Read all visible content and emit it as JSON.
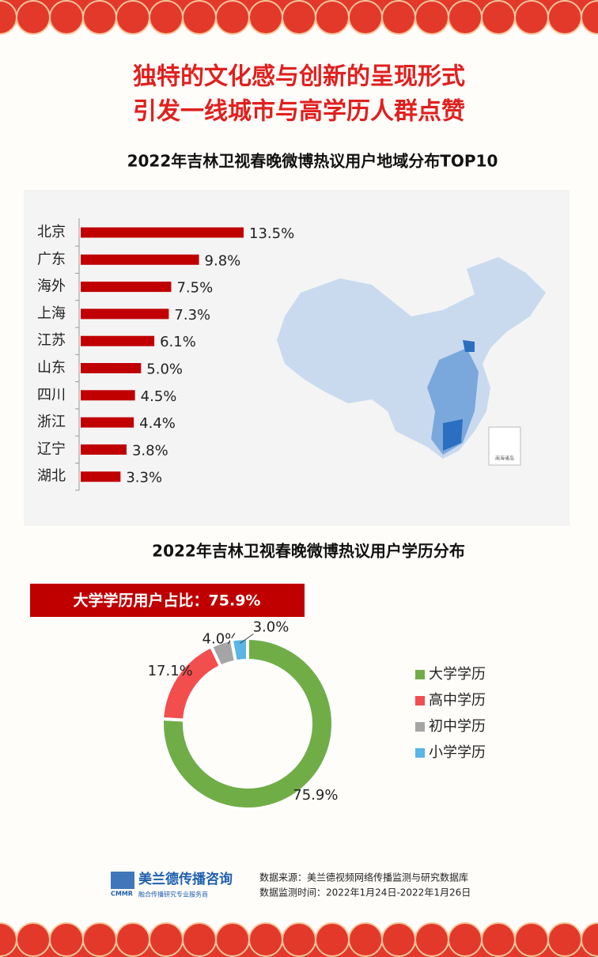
{
  "header": {
    "title_line1": "独特的文化感与创新的呈现形式",
    "title_line2": "引发一线城市与高学历人群点赞"
  },
  "chart_data": [
    {
      "type": "bar",
      "orientation": "horizontal",
      "title": "2022年吉林卫视春晚微博热议用户地域分布TOP10",
      "categories": [
        "北京",
        "广东",
        "海外",
        "上海",
        "江苏",
        "山东",
        "四川",
        "浙江",
        "辽宁",
        "湖北"
      ],
      "values": [
        13.5,
        9.8,
        7.5,
        7.3,
        6.1,
        5.0,
        4.5,
        4.4,
        3.8,
        3.3
      ],
      "value_labels": [
        "13.5%",
        "9.8%",
        "7.5%",
        "7.3%",
        "6.1%",
        "5.0%",
        "4.5%",
        "4.4%",
        "3.8%",
        "3.3%"
      ],
      "color": "#c00000",
      "map_note": "南海诸岛"
    },
    {
      "type": "donut",
      "title": "2022年吉林卫视春晚微博热议用户学历分布",
      "annotation": "大学学历用户占比：75.9%",
      "categories": [
        "大学学历",
        "高中学历",
        "初中学历",
        "小学学历"
      ],
      "values": [
        75.9,
        17.1,
        4.0,
        3.0
      ],
      "value_labels": [
        "75.9%",
        "17.1%",
        "4.0%",
        "3.0%"
      ],
      "colors": [
        "#70ad47",
        "#f24e4e",
        "#a5a5a5",
        "#5bb5e5"
      ],
      "legend": "right"
    }
  ],
  "footer": {
    "logo": "美兰德传播咨询",
    "logo_abbr": "CMMR",
    "logo_tagline": "融合传播研究专业服务商",
    "source": "数据来源：美兰德视频网络传播监测与研究数据库",
    "period": "数据监测时间：2022年1月24日-2022年1月26日"
  }
}
